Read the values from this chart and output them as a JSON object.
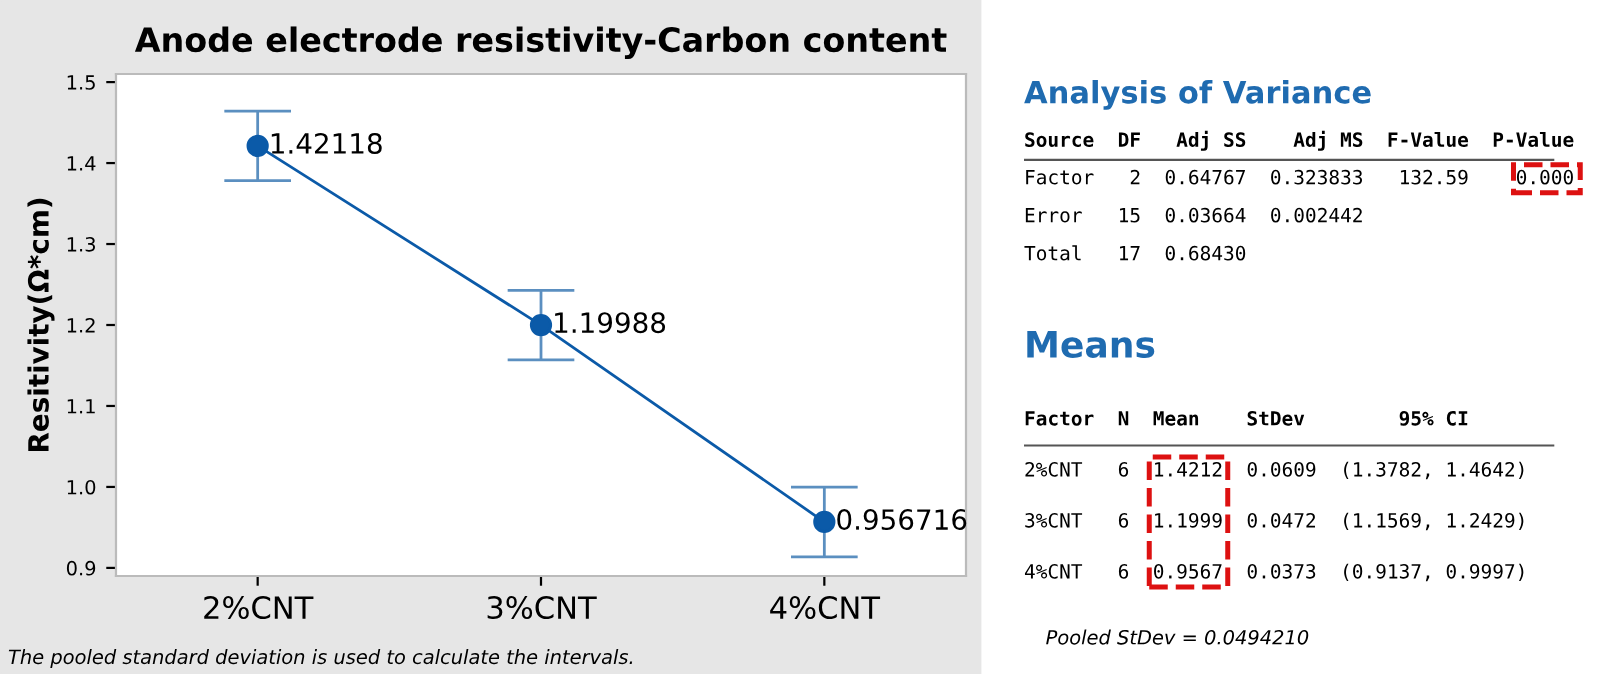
{
  "chart_data": [
    {
      "type": "line",
      "title": "Anode electrode resistivity-Carbon content",
      "ylabel": "Resitivity(Ω*cm)",
      "categories": [
        "2%CNT",
        "3%CNT",
        "4%CNT"
      ],
      "series": [
        {
          "color": "#0b5aa8",
          "values": [
            1.42118,
            1.19988,
            0.956716
          ],
          "errors": [
            [
              1.3782,
              1.4642
            ],
            [
              1.1569,
              1.2429
            ],
            [
              0.9137,
              0.9997
            ]
          ]
        }
      ],
      "value_labels": [
        "1.42118",
        "1.19988",
        "0.956716"
      ],
      "ylim": [
        0.89,
        1.51
      ],
      "yticks": [
        {
          "value": 0.9,
          "label": "0.9"
        },
        {
          "value": 1.0,
          "label": "1.0"
        },
        {
          "value": 1.1,
          "label": "1.1"
        },
        {
          "value": 1.2,
          "label": "1.2"
        },
        {
          "value": 1.3,
          "label": "1.3"
        },
        {
          "value": 1.4,
          "label": "1.4"
        },
        {
          "value": 1.5,
          "label": "1.5"
        }
      ],
      "marker": "circle",
      "line_style": "solid",
      "annotations": [
        "The pooled standard deviation is used to calculate the intervals."
      ]
    },
    {
      "type": "other",
      "title": "Analysis of Variance",
      "annotations": [
        "Source  DF   Adj SS    Adj MS  F-Value  P-Value",
        "Factor   2  0.64767  0.323833   132.59    0.000",
        "Error   15  0.03664  0.002442",
        "Total   17  0.68430"
      ]
    },
    {
      "type": "other",
      "title": "Means",
      "annotations": [
        "Factor  N  Mean    StDev        95% CI",
        "2%CNT   6  1.4212  0.0609  (1.3782, 1.4642)",
        "3%CNT   6  1.1999  0.0472  (1.1569, 1.2429)",
        "4%CNT   6  0.9567  0.0373  (0.9137, 0.9997)",
        "Pooled StDev = 0.0494210"
      ]
    }
  ]
}
